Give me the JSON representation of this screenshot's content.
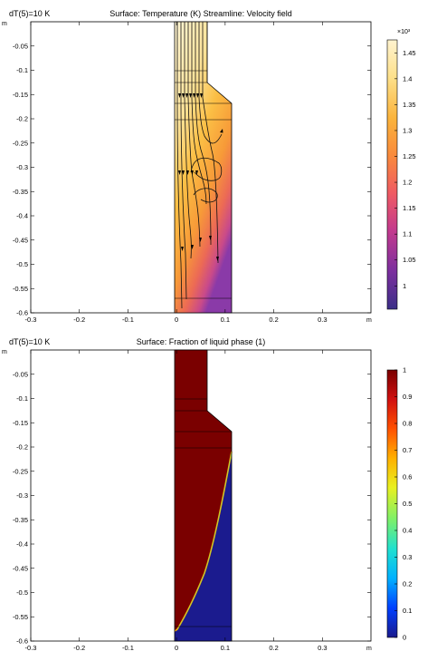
{
  "chart_data": [
    {
      "type": "heatmap",
      "top_left_label": "dT(5)=10 K",
      "title": "Surface: Temperature (K)  Streamline: Velocity field",
      "x_unit": "m",
      "y_unit": "m",
      "xlim": [
        -0.3,
        0.4
      ],
      "ylim": [
        -0.6,
        0.0
      ],
      "x_ticks": [
        "-0.3",
        "-0.2",
        "-0.1",
        "0",
        "0.1",
        "0.2",
        "0.3"
      ],
      "y_ticks": [
        "-0.05",
        "-0.1",
        "-0.15",
        "-0.2",
        "-0.25",
        "-0.3",
        "-0.35",
        "-0.4",
        "-0.45",
        "-0.5",
        "-0.55",
        "-0.6"
      ],
      "colorbar": {
        "multiplier": "×10³",
        "ticks": [
          "1.45",
          "1.4",
          "1.35",
          "1.3",
          "1.25",
          "1.2",
          "1.15",
          "1.1",
          "1.05",
          "1"
        ],
        "tick_values": [
          1.45,
          1.4,
          1.35,
          1.3,
          1.25,
          1.2,
          1.15,
          1.1,
          1.05,
          1.0
        ],
        "range": [
          0.955,
          1.475
        ],
        "colors": [
          "#3b2f87",
          "#7b2f9e",
          "#c23a8e",
          "#ef5a63",
          "#f98a3c",
          "#fbb43c",
          "#fde08a",
          "#fff3cf"
        ]
      }
    },
    {
      "type": "heatmap",
      "top_left_label": "dT(5)=10 K",
      "title": "Surface: Fraction of liquid phase (1)",
      "x_unit": "m",
      "y_unit": "m",
      "xlim": [
        -0.3,
        0.4
      ],
      "ylim": [
        -0.6,
        0.0
      ],
      "x_ticks": [
        "-0.3",
        "-0.2",
        "-0.1",
        "0",
        "0.1",
        "0.2",
        "0.3"
      ],
      "y_ticks": [
        "-0.05",
        "-0.1",
        "-0.15",
        "-0.2",
        "-0.25",
        "-0.3",
        "-0.35",
        "-0.4",
        "-0.45",
        "-0.5",
        "-0.55",
        "-0.6"
      ],
      "colorbar": {
        "ticks": [
          "1",
          "0.9",
          "0.8",
          "0.7",
          "0.6",
          "0.5",
          "0.4",
          "0.3",
          "0.2",
          "0.1",
          "0"
        ],
        "tick_values": [
          1,
          0.9,
          0.8,
          0.7,
          0.6,
          0.5,
          0.4,
          0.3,
          0.2,
          0.1,
          0
        ],
        "range": [
          0,
          1
        ],
        "colors": [
          "#1a1a8c",
          "#0040ff",
          "#00b0ff",
          "#20e0d0",
          "#7cf06a",
          "#e8f020",
          "#ffb000",
          "#ff5000",
          "#d01010",
          "#7a0000"
        ]
      }
    }
  ]
}
